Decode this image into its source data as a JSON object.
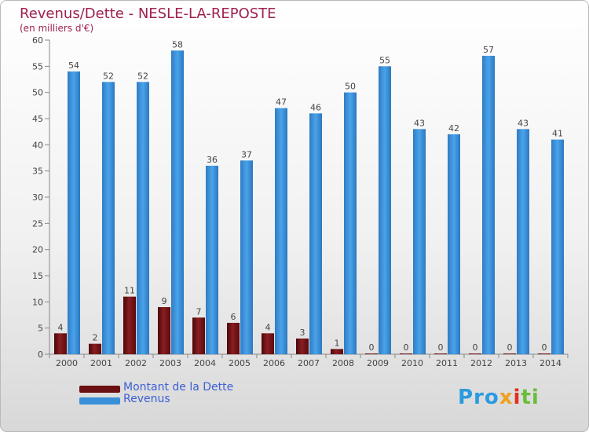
{
  "header": {
    "title": "Revenus/Dette - NESLE-LA-REPOSTE",
    "subtitle": "(en milliers d'€)"
  },
  "legend": {
    "items": [
      {
        "label": "Montant de la Dette",
        "color": "#6b0f12"
      },
      {
        "label": "Revenus",
        "color": "#3a8fd9"
      }
    ]
  },
  "logo": {
    "text": "Proxiti"
  },
  "chart_data": {
    "type": "bar",
    "categories": [
      "2000",
      "2001",
      "2002",
      "2003",
      "2004",
      "2005",
      "2006",
      "2007",
      "2008",
      "2009",
      "2010",
      "2011",
      "2012",
      "2013",
      "2014"
    ],
    "series": [
      {
        "name": "Montant de la Dette",
        "values": [
          4,
          2,
          11,
          9,
          7,
          6,
          4,
          3,
          1,
          0,
          0,
          0,
          0,
          0,
          0
        ],
        "color": "#6b0f12"
      },
      {
        "name": "Revenus",
        "values": [
          54,
          52,
          52,
          58,
          36,
          37,
          47,
          46,
          50,
          55,
          43,
          42,
          57,
          43,
          41
        ],
        "color": "#3a8fd9"
      }
    ],
    "ylim": [
      0,
      60
    ],
    "yticks": [
      0,
      5,
      10,
      15,
      20,
      25,
      30,
      35,
      40,
      45,
      50,
      55,
      60
    ],
    "grid": false,
    "legend_position": "bottom-left"
  }
}
